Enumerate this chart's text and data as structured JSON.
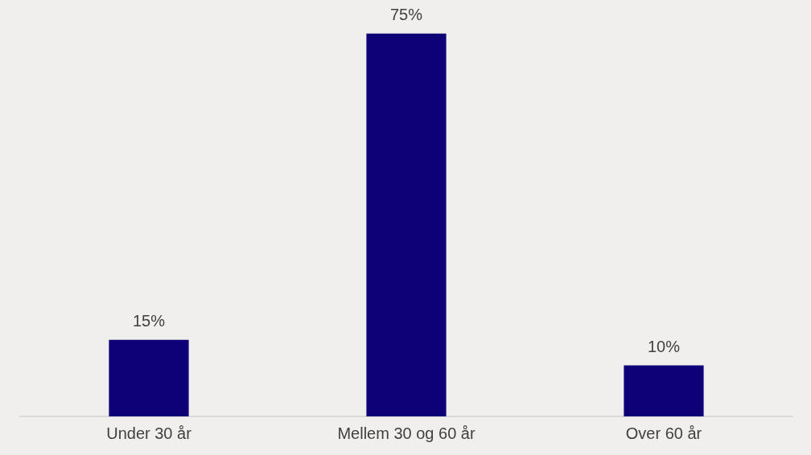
{
  "chart_data": {
    "type": "bar",
    "categories": [
      "Under 30 år",
      "Mellem 30 og 60 år",
      "Over 60 år"
    ],
    "values": [
      15,
      75,
      10
    ],
    "value_labels": [
      "15%",
      "75%",
      "10%"
    ],
    "color": "#0e0077"
  }
}
